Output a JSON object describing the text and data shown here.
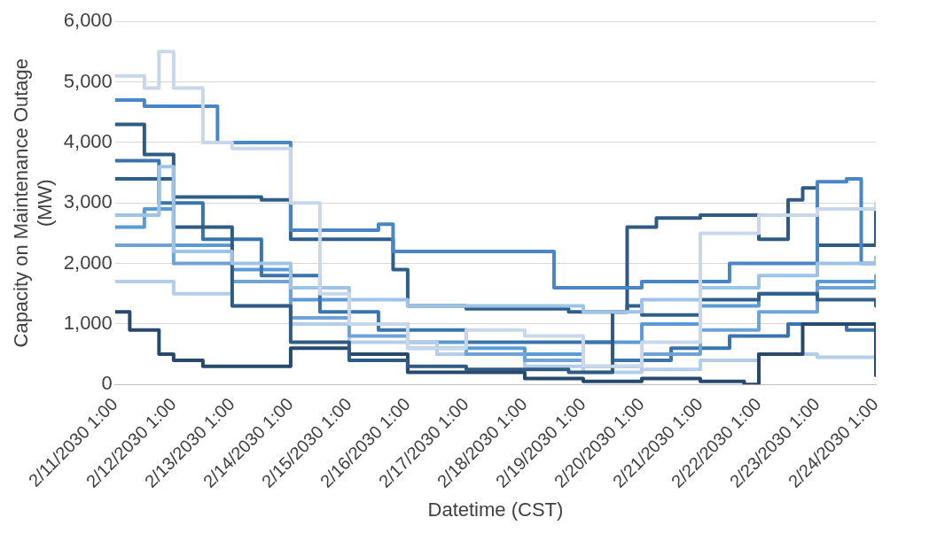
{
  "chart_data": {
    "type": "step",
    "xlabel": "Datetime (CST)",
    "ylabel": "Capacity on Maintenance Outage (MW)",
    "xlim": [
      "2030-02-11T01:00",
      "2030-02-24T01:00"
    ],
    "xticks": [
      {
        "value": "2030-02-11T01:00",
        "label": "2/11/2030 1:00"
      },
      {
        "value": "2030-02-12T01:00",
        "label": "2/12/2030 1:00"
      },
      {
        "value": "2030-02-13T01:00",
        "label": "2/13/2030 1:00"
      },
      {
        "value": "2030-02-14T01:00",
        "label": "2/14/2030 1:00"
      },
      {
        "value": "2030-02-15T01:00",
        "label": "2/15/2030 1:00"
      },
      {
        "value": "2030-02-16T01:00",
        "label": "2/16/2030 1:00"
      },
      {
        "value": "2030-02-17T01:00",
        "label": "2/17/2030 1:00"
      },
      {
        "value": "2030-02-18T01:00",
        "label": "2/18/2030 1:00"
      },
      {
        "value": "2030-02-19T01:00",
        "label": "2/19/2030 1:00"
      },
      {
        "value": "2030-02-20T01:00",
        "label": "2/20/2030 1:00"
      },
      {
        "value": "2030-02-21T01:00",
        "label": "2/21/2030 1:00"
      },
      {
        "value": "2030-02-22T01:00",
        "label": "2/22/2030 1:00"
      },
      {
        "value": "2030-02-23T01:00",
        "label": "2/23/2030 1:00"
      },
      {
        "value": "2030-02-24T01:00",
        "label": "2/24/2030 1:00"
      }
    ],
    "ylim": [
      0,
      6000
    ],
    "yticks": [
      0,
      {
        "value": 1000,
        "label": "1,000"
      },
      {
        "value": 2000,
        "label": "2,000"
      },
      {
        "value": 3000,
        "label": "3,000"
      },
      {
        "value": 4000,
        "label": "4,000"
      },
      {
        "value": 5000,
        "label": "5,000"
      },
      {
        "value": 6000,
        "label": "6,000"
      }
    ],
    "grid": "y",
    "legend": false,
    "line_style": "solid",
    "series": [
      {
        "color": "#c9d7ea",
        "x": [
          "2030-02-11T01:00",
          "2030-02-11T13:00",
          "2030-02-11T19:00",
          "2030-02-12T01:00",
          "2030-02-12T13:00",
          "2030-02-13T01:00",
          "2030-02-14T01:00",
          "2030-02-14T13:00",
          "2030-02-15T01:00",
          "2030-02-16T01:00",
          "2030-02-17T01:00",
          "2030-02-18T01:00",
          "2030-02-19T01:00",
          "2030-02-20T01:00",
          "2030-02-21T01:00",
          "2030-02-22T01:00",
          "2030-02-23T01:00",
          "2030-02-24T01:00"
        ],
        "values": [
          5100,
          4900,
          5500,
          4900,
          4000,
          3900,
          3000,
          1500,
          1000,
          600,
          900,
          800,
          300,
          700,
          2500,
          2800,
          2900,
          3000
        ]
      },
      {
        "color": "#9dc3e6",
        "x": [
          "2030-02-11T01:00",
          "2030-02-11T19:00",
          "2030-02-12T01:00",
          "2030-02-13T01:00",
          "2030-02-14T01:00",
          "2030-02-15T01:00",
          "2030-02-16T01:00",
          "2030-02-18T01:00",
          "2030-02-19T01:00",
          "2030-02-20T01:00",
          "2030-02-21T01:00",
          "2030-02-22T01:00",
          "2030-02-23T01:00",
          "2030-02-24T01:00"
        ],
        "values": [
          2800,
          3600,
          2200,
          2000,
          1600,
          1400,
          1300,
          1300,
          1200,
          1400,
          1600,
          1800,
          2000,
          2100
        ]
      },
      {
        "color": "#4a86c5",
        "x": [
          "2030-02-11T01:00",
          "2030-02-11T13:00",
          "2030-02-12T19:00",
          "2030-02-14T01:00",
          "2030-02-15T13:00",
          "2030-02-15T19:00",
          "2030-02-18T13:00",
          "2030-02-20T01:00",
          "2030-02-21T13:00",
          "2030-02-23T01:00",
          "2030-02-23T13:00",
          "2030-02-23T19:00",
          "2030-02-24T01:00"
        ],
        "values": [
          4700,
          4600,
          4000,
          2550,
          2650,
          2200,
          1600,
          1700,
          2000,
          3350,
          3400,
          2000,
          2100
        ]
      },
      {
        "color": "#2e5f8a",
        "x": [
          "2030-02-11T01:00",
          "2030-02-12T01:00",
          "2030-02-13T13:00",
          "2030-02-14T01:00",
          "2030-02-15T19:00",
          "2030-02-16T01:00",
          "2030-02-17T01:00",
          "2030-02-18T19:00",
          "2030-02-19T19:00",
          "2030-02-20T01:00",
          "2030-02-21T01:00",
          "2030-02-22T01:00",
          "2030-02-23T01:00",
          "2030-02-24T01:00"
        ],
        "values": [
          3400,
          3100,
          3050,
          2400,
          1900,
          1300,
          1250,
          1200,
          1300,
          1150,
          1400,
          1500,
          1400,
          1300
        ]
      },
      {
        "color": "#2f5a82",
        "x": [
          "2030-02-11T01:00",
          "2030-02-11T13:00",
          "2030-02-12T01:00",
          "2030-02-13T01:00",
          "2030-02-14T01:00",
          "2030-02-15T01:00",
          "2030-02-16T01:00",
          "2030-02-17T01:00",
          "2030-02-18T19:00",
          "2030-02-19T13:00",
          "2030-02-19T19:00",
          "2030-02-20T07:00",
          "2030-02-21T01:00",
          "2030-02-22T01:00",
          "2030-02-22T13:00",
          "2030-02-22T19:00",
          "2030-02-23T01:00",
          "2030-02-24T01:00"
        ],
        "values": [
          4300,
          3800,
          2600,
          1300,
          700,
          400,
          300,
          250,
          200,
          1200,
          2600,
          2750,
          2800,
          2400,
          3050,
          3250,
          2300,
          2850
        ]
      },
      {
        "color": "#27496d",
        "x": [
          "2030-02-11T01:00",
          "2030-02-11T07:00",
          "2030-02-11T19:00",
          "2030-02-12T01:00",
          "2030-02-12T13:00",
          "2030-02-14T01:00",
          "2030-02-15T01:00",
          "2030-02-16T01:00",
          "2030-02-18T01:00",
          "2030-02-19T01:00",
          "2030-02-20T01:00",
          "2030-02-21T01:00",
          "2030-02-21T19:00",
          "2030-02-22T01:00",
          "2030-02-22T19:00",
          "2030-02-24T01:00"
        ],
        "values": [
          1200,
          900,
          500,
          400,
          300,
          600,
          500,
          200,
          100,
          50,
          100,
          50,
          0,
          500,
          1000,
          150
        ]
      },
      {
        "color": "#6fa3d8",
        "x": [
          "2030-02-11T01:00",
          "2030-02-12T01:00",
          "2030-02-13T01:00",
          "2030-02-14T01:00",
          "2030-02-15T01:00",
          "2030-02-16T01:00",
          "2030-02-17T01:00",
          "2030-02-18T01:00",
          "2030-02-19T01:00",
          "2030-02-20T01:00",
          "2030-02-21T01:00",
          "2030-02-22T01:00",
          "2030-02-23T01:00",
          "2030-02-24T01:00"
        ],
        "values": [
          2300,
          2000,
          1700,
          1100,
          800,
          600,
          500,
          400,
          300,
          500,
          900,
          1200,
          1600,
          1800
        ]
      },
      {
        "color": "#3b73ad",
        "x": [
          "2030-02-11T01:00",
          "2030-02-11T19:00",
          "2030-02-12T13:00",
          "2030-02-13T13:00",
          "2030-02-14T13:00",
          "2030-02-15T13:00",
          "2030-02-17T01:00",
          "2030-02-18T13:00",
          "2030-02-19T13:00",
          "2030-02-20T13:00",
          "2030-02-21T13:00",
          "2030-02-22T13:00",
          "2030-02-23T13:00",
          "2030-02-24T01:00"
        ],
        "values": [
          3700,
          3000,
          2400,
          1800,
          1200,
          900,
          700,
          700,
          400,
          600,
          800,
          1000,
          900,
          1000
        ]
      },
      {
        "color": "#b4cde8",
        "x": [
          "2030-02-11T01:00",
          "2030-02-12T01:00",
          "2030-02-13T01:00",
          "2030-02-14T01:00",
          "2030-02-15T01:00",
          "2030-02-16T13:00",
          "2030-02-18T01:00",
          "2030-02-19T01:00",
          "2030-02-20T01:00",
          "2030-02-21T01:00",
          "2030-02-22T01:00",
          "2030-02-23T01:00",
          "2030-02-24T01:00"
        ],
        "values": [
          1700,
          1500,
          1300,
          1000,
          700,
          500,
          300,
          200,
          250,
          400,
          500,
          450,
          400
        ]
      },
      {
        "color": "#5b9bd5",
        "x": [
          "2030-02-11T01:00",
          "2030-02-11T13:00",
          "2030-02-12T01:00",
          "2030-02-13T01:00",
          "2030-02-14T01:00",
          "2030-02-15T01:00",
          "2030-02-16T01:00",
          "2030-02-17T01:00",
          "2030-02-18T01:00",
          "2030-02-19T01:00",
          "2030-02-20T01:00",
          "2030-02-21T01:00",
          "2030-02-22T01:00",
          "2030-02-23T01:00",
          "2030-02-24T01:00"
        ],
        "values": [
          2600,
          2900,
          2300,
          1900,
          1400,
          1000,
          700,
          600,
          500,
          700,
          1000,
          1300,
          1500,
          1700,
          1600
        ]
      }
    ]
  }
}
